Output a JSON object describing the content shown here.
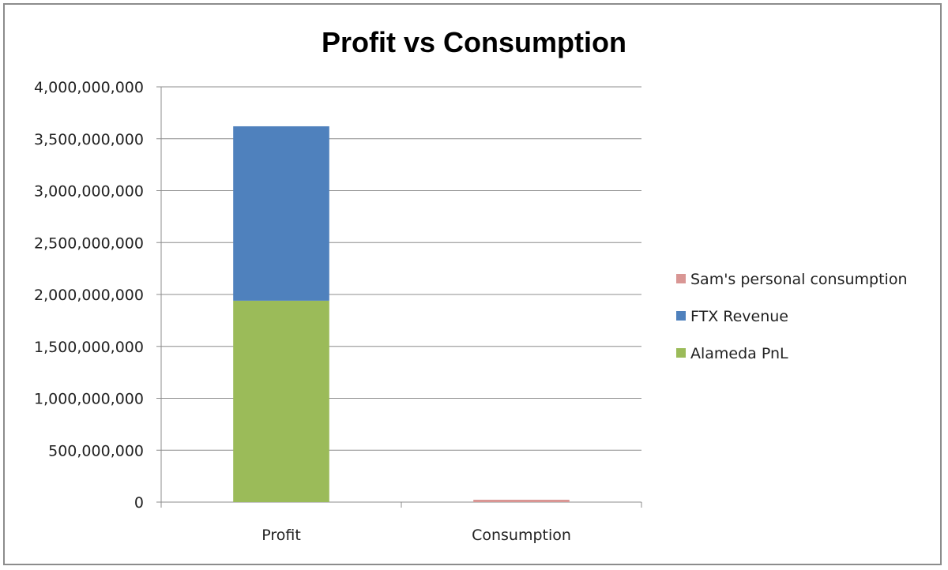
{
  "chart_data": {
    "type": "bar",
    "stacked": true,
    "title": "Profit vs Consumption",
    "xlabel": "",
    "ylabel": "",
    "ylim": [
      0,
      4000000000
    ],
    "y_ticks": [
      "0",
      "500,000,000",
      "1,000,000,000",
      "1,500,000,000",
      "2,000,000,000",
      "2,500,000,000",
      "3,000,000,000",
      "3,500,000,000",
      "4,000,000,000"
    ],
    "y_tick_values": [
      0,
      500000000,
      1000000000,
      1500000000,
      2000000000,
      2500000000,
      3000000000,
      3500000000,
      4000000000
    ],
    "categories": [
      "Profit",
      "Consumption"
    ],
    "series": [
      {
        "name": "Alameda PnL",
        "color": "#9bbb59",
        "values": [
          1940000000,
          0
        ]
      },
      {
        "name": "FTX Revenue",
        "color": "#4f81bd",
        "values": [
          1680000000,
          0
        ]
      },
      {
        "name": "Sam's personal consumption",
        "color": "#d99694",
        "values": [
          0,
          22000000
        ]
      }
    ],
    "legend_order": [
      "Sam's personal consumption",
      "FTX Revenue",
      "Alameda PnL"
    ],
    "legend_position": "right",
    "grid": true,
    "colors": {
      "gridline": "#8c8c8c",
      "axis": "#8c8c8c",
      "frame": "#8c8c8c"
    }
  }
}
